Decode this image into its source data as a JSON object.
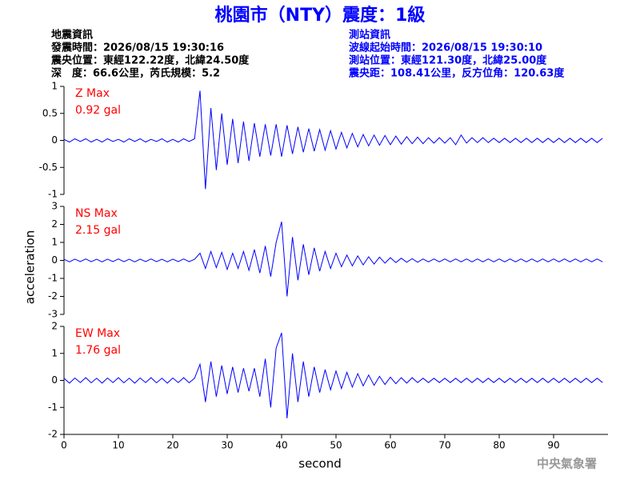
{
  "header": {
    "title": "桃園市（NTY）震度：1級",
    "left_info": [
      "地震資訊",
      "發震時間：2026/08/15 19:30:16",
      "震央位置：東經122.22度，北緯24.50度",
      "深　度：66.6公里，芮氏規模：5.2"
    ],
    "right_info": [
      "測站資訊",
      "波線起始時間：2026/08/15 19:30:10",
      "測站位置：東經121.30度，北緯25.00度",
      "震央距：108.41公里，反方位角：120.63度"
    ]
  },
  "ylabel": "acceleration",
  "xlabel": "second",
  "credit": "中央氣象署",
  "chart_data": [
    {
      "type": "line",
      "annotation": [
        "Z Max",
        "0.92 gal"
      ],
      "color": "#0000ff",
      "annotation_color": "#ff0000",
      "xlim": [
        0,
        100
      ],
      "ylim": [
        -1,
        1
      ],
      "yticks": [
        -1,
        -0.5,
        0,
        0.5,
        1
      ],
      "x": [
        0,
        1,
        2,
        3,
        4,
        5,
        6,
        7,
        8,
        9,
        10,
        11,
        12,
        13,
        14,
        15,
        16,
        17,
        18,
        19,
        20,
        21,
        22,
        23,
        24,
        25,
        26,
        27,
        28,
        29,
        30,
        31,
        32,
        33,
        34,
        35,
        36,
        37,
        38,
        39,
        40,
        41,
        42,
        43,
        44,
        45,
        46,
        47,
        48,
        49,
        50,
        51,
        52,
        53,
        54,
        55,
        56,
        57,
        58,
        59,
        60,
        61,
        62,
        63,
        64,
        65,
        66,
        67,
        68,
        69,
        70,
        71,
        72,
        73,
        74,
        75,
        76,
        77,
        78,
        79,
        80,
        81,
        82,
        83,
        84,
        85,
        86,
        87,
        88,
        89,
        90,
        91,
        92,
        93,
        94,
        95,
        96,
        97,
        98,
        99
      ],
      "values": [
        0.02,
        -0.03,
        0.03,
        -0.02,
        0.03,
        -0.03,
        0.02,
        -0.03,
        0.03,
        -0.02,
        0.02,
        -0.03,
        0.03,
        -0.02,
        0.03,
        -0.03,
        0.02,
        -0.02,
        0.03,
        -0.03,
        0.02,
        -0.03,
        0.03,
        -0.02,
        0.03,
        0.92,
        -0.9,
        0.6,
        -0.55,
        0.5,
        -0.45,
        0.4,
        -0.42,
        0.35,
        -0.38,
        0.32,
        -0.3,
        0.3,
        -0.28,
        0.3,
        -0.3,
        0.28,
        -0.25,
        0.25,
        -0.22,
        0.22,
        -0.2,
        0.2,
        -0.18,
        0.18,
        -0.16,
        0.15,
        -0.14,
        0.13,
        -0.12,
        0.11,
        -0.1,
        0.1,
        -0.09,
        0.09,
        -0.08,
        0.08,
        -0.07,
        0.07,
        -0.06,
        0.06,
        -0.06,
        0.05,
        -0.05,
        0.05,
        -0.05,
        0.05,
        -0.08,
        0.1,
        -0.05,
        0.05,
        -0.04,
        0.05,
        -0.04,
        0.04,
        -0.04,
        0.04,
        -0.04,
        0.04,
        -0.04,
        0.04,
        -0.04,
        0.04,
        -0.04,
        0.04,
        -0.04,
        0.04,
        -0.04,
        0.04,
        -0.04,
        0.04,
        -0.04,
        0.04,
        -0.04,
        0.04
      ]
    },
    {
      "type": "line",
      "annotation": [
        "NS Max",
        "2.15 gal"
      ],
      "color": "#0000ff",
      "annotation_color": "#ff0000",
      "xlim": [
        0,
        100
      ],
      "ylim": [
        -3,
        3
      ],
      "yticks": [
        -3,
        -2,
        -1,
        0,
        1,
        2,
        3
      ],
      "x": [
        0,
        1,
        2,
        3,
        4,
        5,
        6,
        7,
        8,
        9,
        10,
        11,
        12,
        13,
        14,
        15,
        16,
        17,
        18,
        19,
        20,
        21,
        22,
        23,
        24,
        25,
        26,
        27,
        28,
        29,
        30,
        31,
        32,
        33,
        34,
        35,
        36,
        37,
        38,
        39,
        40,
        41,
        42,
        43,
        44,
        45,
        46,
        47,
        48,
        49,
        50,
        51,
        52,
        53,
        54,
        55,
        56,
        57,
        58,
        59,
        60,
        61,
        62,
        63,
        64,
        65,
        66,
        67,
        68,
        69,
        70,
        71,
        72,
        73,
        74,
        75,
        76,
        77,
        78,
        79,
        80,
        81,
        82,
        83,
        84,
        85,
        86,
        87,
        88,
        89,
        90,
        91,
        92,
        93,
        94,
        95,
        96,
        97,
        98,
        99
      ],
      "values": [
        0.06,
        -0.08,
        0.07,
        -0.06,
        0.08,
        -0.07,
        0.06,
        -0.08,
        0.07,
        -0.06,
        0.08,
        -0.07,
        0.06,
        -0.08,
        0.07,
        -0.06,
        0.08,
        -0.07,
        0.06,
        -0.08,
        0.07,
        -0.06,
        0.08,
        -0.07,
        0.06,
        0.4,
        -0.45,
        0.5,
        -0.4,
        0.45,
        -0.5,
        0.4,
        -0.45,
        0.5,
        -0.55,
        0.6,
        -0.7,
        0.8,
        -0.9,
        1.0,
        2.15,
        -2.0,
        1.3,
        -1.1,
        0.9,
        -0.8,
        0.7,
        -0.6,
        0.5,
        -0.45,
        0.4,
        -0.35,
        0.3,
        -0.3,
        0.25,
        -0.25,
        0.2,
        -0.2,
        0.18,
        -0.15,
        0.15,
        -0.12,
        0.12,
        -0.1,
        0.1,
        -0.1,
        0.08,
        -0.08,
        0.08,
        -0.08,
        0.08,
        -0.08,
        0.08,
        -0.08,
        0.08,
        -0.08,
        0.08,
        -0.08,
        0.08,
        -0.08,
        0.08,
        -0.08,
        0.08,
        -0.08,
        0.08,
        -0.08,
        0.08,
        -0.08,
        0.08,
        -0.08,
        0.08,
        -0.08,
        0.08,
        -0.08,
        0.08,
        -0.08,
        0.08,
        -0.08,
        0.08,
        -0.08
      ]
    },
    {
      "type": "line",
      "annotation": [
        "EW Max",
        "1.76 gal"
      ],
      "color": "#0000ff",
      "annotation_color": "#ff0000",
      "xlim": [
        0,
        100
      ],
      "ylim": [
        -2,
        2
      ],
      "yticks": [
        -2,
        -1,
        0,
        1,
        2
      ],
      "xticks": [
        0,
        10,
        20,
        30,
        40,
        50,
        60,
        70,
        80,
        90
      ],
      "x": [
        0,
        1,
        2,
        3,
        4,
        5,
        6,
        7,
        8,
        9,
        10,
        11,
        12,
        13,
        14,
        15,
        16,
        17,
        18,
        19,
        20,
        21,
        22,
        23,
        24,
        25,
        26,
        27,
        28,
        29,
        30,
        31,
        32,
        33,
        34,
        35,
        36,
        37,
        38,
        39,
        40,
        41,
        42,
        43,
        44,
        45,
        46,
        47,
        48,
        49,
        50,
        51,
        52,
        53,
        54,
        55,
        56,
        57,
        58,
        59,
        60,
        61,
        62,
        63,
        64,
        65,
        66,
        67,
        68,
        69,
        70,
        71,
        72,
        73,
        74,
        75,
        76,
        77,
        78,
        79,
        80,
        81,
        82,
        83,
        84,
        85,
        86,
        87,
        88,
        89,
        90,
        91,
        92,
        93,
        94,
        95,
        96,
        97,
        98,
        99
      ],
      "values": [
        0.08,
        -0.1,
        0.09,
        -0.08,
        0.1,
        -0.09,
        0.08,
        -0.1,
        0.09,
        -0.08,
        0.1,
        -0.09,
        0.08,
        -0.1,
        0.09,
        -0.08,
        0.1,
        -0.09,
        0.08,
        -0.1,
        0.09,
        -0.08,
        0.1,
        -0.09,
        0.08,
        0.6,
        -0.8,
        0.7,
        -0.6,
        0.55,
        -0.5,
        0.5,
        -0.45,
        0.45,
        -0.4,
        0.45,
        -0.6,
        0.8,
        -1.0,
        1.2,
        1.76,
        -1.4,
        1.0,
        -0.8,
        0.7,
        -0.6,
        0.5,
        -0.45,
        0.4,
        -0.35,
        0.35,
        -0.3,
        0.3,
        -0.25,
        0.25,
        -0.2,
        0.2,
        -0.18,
        0.15,
        -0.15,
        0.12,
        -0.12,
        0.1,
        -0.1,
        0.1,
        -0.08,
        0.08,
        -0.08,
        0.08,
        -0.08,
        0.08,
        -0.08,
        0.08,
        -0.08,
        0.08,
        -0.08,
        0.08,
        -0.08,
        0.08,
        -0.08,
        0.08,
        -0.08,
        0.08,
        -0.08,
        0.08,
        -0.08,
        0.08,
        -0.08,
        0.08,
        -0.08,
        0.08,
        -0.08,
        0.08,
        -0.08,
        0.08,
        -0.08,
        0.08,
        -0.08,
        0.08,
        -0.08
      ]
    }
  ]
}
